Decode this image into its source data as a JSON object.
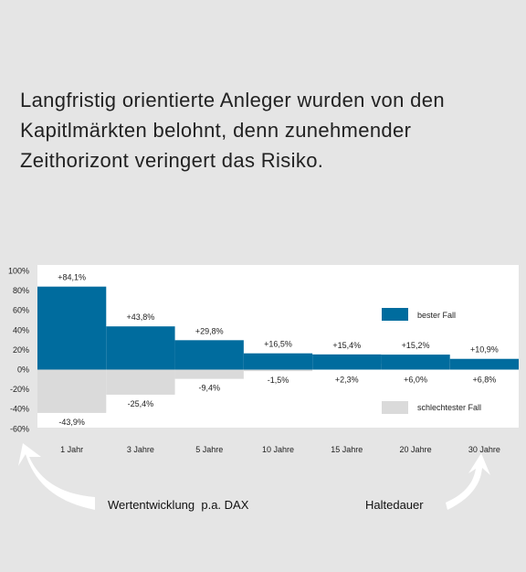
{
  "headline": {
    "line1": "Langfristig orientierte Anleger wurden von den",
    "line2": "Kapitlmärkten belohnt, denn zunehmender",
    "line3": "Zeithorizont veringert das Risiko."
  },
  "chart_data": {
    "type": "bar",
    "categories": [
      "1 Jahr",
      "3 Jahre",
      "5 Jahre",
      "10 Jahre",
      "15 Jahre",
      "20 Jahre",
      "30 Jahre"
    ],
    "series": [
      {
        "name": "bester Fall",
        "color": "#006c9e",
        "values": [
          84.1,
          43.8,
          29.8,
          16.5,
          15.4,
          15.2,
          10.9
        ],
        "labels": [
          "+84,1%",
          "+43,8%",
          "+29,8%",
          "+16,5%",
          "+15,4%",
          "+15,2%",
          "+10,9%"
        ]
      },
      {
        "name": "schlechtester Fall",
        "color": "#dadada",
        "values": [
          -43.9,
          -25.4,
          -9.4,
          -1.5,
          2.3,
          6.0,
          6.8
        ],
        "labels": [
          "-43,9%",
          "-25,4%",
          "-9,4%",
          "-1,5%",
          "+2,3%",
          "+6,0%",
          "+6,8%"
        ]
      }
    ],
    "yticks": [
      "100%",
      "80%",
      "60%",
      "40%",
      "20%",
      "0%",
      "-20%",
      "-40%",
      "-60%"
    ],
    "ytick_values": [
      100,
      80,
      60,
      40,
      20,
      0,
      -20,
      -40,
      -60
    ],
    "ylim": [
      -60,
      100
    ],
    "legend_position": "right",
    "grid": false
  },
  "captions": {
    "left": "Wertentwicklung  p.a. DAX",
    "right": "Haltedauer"
  },
  "colors": {
    "page_background": "#e5e5e5",
    "plot_background": "#ffffff",
    "arrow": "#ffffff"
  }
}
